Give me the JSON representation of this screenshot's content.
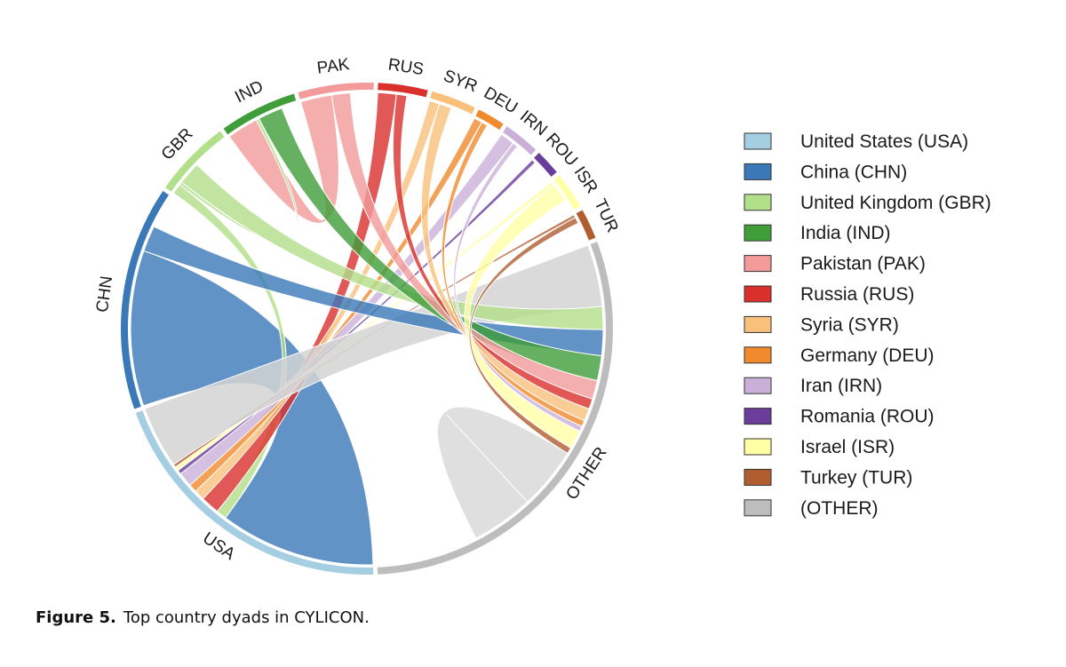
{
  "caption": {
    "label": "Figure 5.",
    "text": "Top country dyads in CYLICON."
  },
  "chart_data": {
    "type": "chord",
    "title": "Top country dyads in CYLICON",
    "segments": [
      {
        "code": "USA",
        "label": "USA",
        "color": "#a6cee3",
        "size": 280
      },
      {
        "code": "CHN",
        "label": "CHN",
        "color": "#3a78b8",
        "size": 208
      },
      {
        "code": "GBR",
        "label": "GBR",
        "color": "#b2df8a",
        "size": 72
      },
      {
        "code": "IND",
        "label": "IND",
        "color": "#3f9e3a",
        "size": 72
      },
      {
        "code": "PAK",
        "label": "PAK",
        "color": "#f39a9a",
        "size": 70
      },
      {
        "code": "RUS",
        "label": "RUS",
        "color": "#d9302c",
        "size": 46
      },
      {
        "code": "SYR",
        "label": "SYR",
        "color": "#f8c07a",
        "size": 42
      },
      {
        "code": "DEU",
        "label": "DEU",
        "color": "#f08a2c",
        "size": 26
      },
      {
        "code": "IRN",
        "label": "IRN",
        "color": "#cab0d9",
        "size": 34
      },
      {
        "code": "ROU",
        "label": "ROU",
        "color": "#6a3d9a",
        "size": 24
      },
      {
        "code": "ISR",
        "label": "ISR",
        "color": "#ffffa6",
        "size": 34
      },
      {
        "code": "TUR",
        "label": "TUR",
        "color": "#b05d30",
        "size": 28
      },
      {
        "code": "OTHER",
        "label": "OTHER",
        "color": "#bdbdbd",
        "size": 424
      }
    ],
    "links": [
      {
        "source": "CHN",
        "target": "USA",
        "value": 150
      },
      {
        "source": "GBR",
        "target": "USA",
        "value": 10
      },
      {
        "source": "RUS",
        "target": "USA",
        "value": 18
      },
      {
        "source": "SYR",
        "target": "USA",
        "value": 10
      },
      {
        "source": "DEU",
        "target": "USA",
        "value": 8
      },
      {
        "source": "IRN",
        "target": "USA",
        "value": 14
      },
      {
        "source": "ROU",
        "target": "USA",
        "value": 4
      },
      {
        "source": "ISR",
        "target": "USA",
        "value": 4
      },
      {
        "source": "TUR",
        "target": "USA",
        "value": 3
      },
      {
        "source": "OTHER",
        "target": "USA",
        "value": 60
      },
      {
        "source": "PAK",
        "target": "IND",
        "value": 30
      },
      {
        "source": "GBR",
        "target": "IND",
        "value": 3
      },
      {
        "source": "GBR",
        "target": "OTHER",
        "value": 22
      },
      {
        "source": "CHN",
        "target": "OTHER",
        "value": 25
      },
      {
        "source": "IND",
        "target": "OTHER",
        "value": 24
      },
      {
        "source": "PAK",
        "target": "OTHER",
        "value": 18
      },
      {
        "source": "RUS",
        "target": "OTHER",
        "value": 10
      },
      {
        "source": "SYR",
        "target": "OTHER",
        "value": 12
      },
      {
        "source": "DEU",
        "target": "OTHER",
        "value": 6
      },
      {
        "source": "IRN",
        "target": "OTHER",
        "value": 5
      },
      {
        "source": "ISR",
        "target": "OTHER",
        "value": 18
      },
      {
        "source": "TUR",
        "target": "OTHER",
        "value": 6
      },
      {
        "source": "OTHER",
        "target": "OTHER",
        "value": 60
      }
    ],
    "legend": {
      "position": "right",
      "items": [
        {
          "label": "United States (USA)",
          "color": "#a6cee3"
        },
        {
          "label": "China (CHN)",
          "color": "#3a78b8"
        },
        {
          "label": "United Kingdom (GBR)",
          "color": "#b2df8a"
        },
        {
          "label": "India (IND)",
          "color": "#3f9e3a"
        },
        {
          "label": "Pakistan (PAK)",
          "color": "#f39a9a"
        },
        {
          "label": "Russia (RUS)",
          "color": "#d9302c"
        },
        {
          "label": "Syria (SYR)",
          "color": "#f8c07a"
        },
        {
          "label": "Germany (DEU)",
          "color": "#f08a2c"
        },
        {
          "label": "Iran (IRN)",
          "color": "#cab0d9"
        },
        {
          "label": "Romania (ROU)",
          "color": "#6a3d9a"
        },
        {
          "label": "Israel (ISR)",
          "color": "#ffffa6"
        },
        {
          "label": "Turkey (TUR)",
          "color": "#b05d30"
        },
        {
          "label": " (OTHER)",
          "color": "#bdbdbd"
        }
      ]
    }
  }
}
